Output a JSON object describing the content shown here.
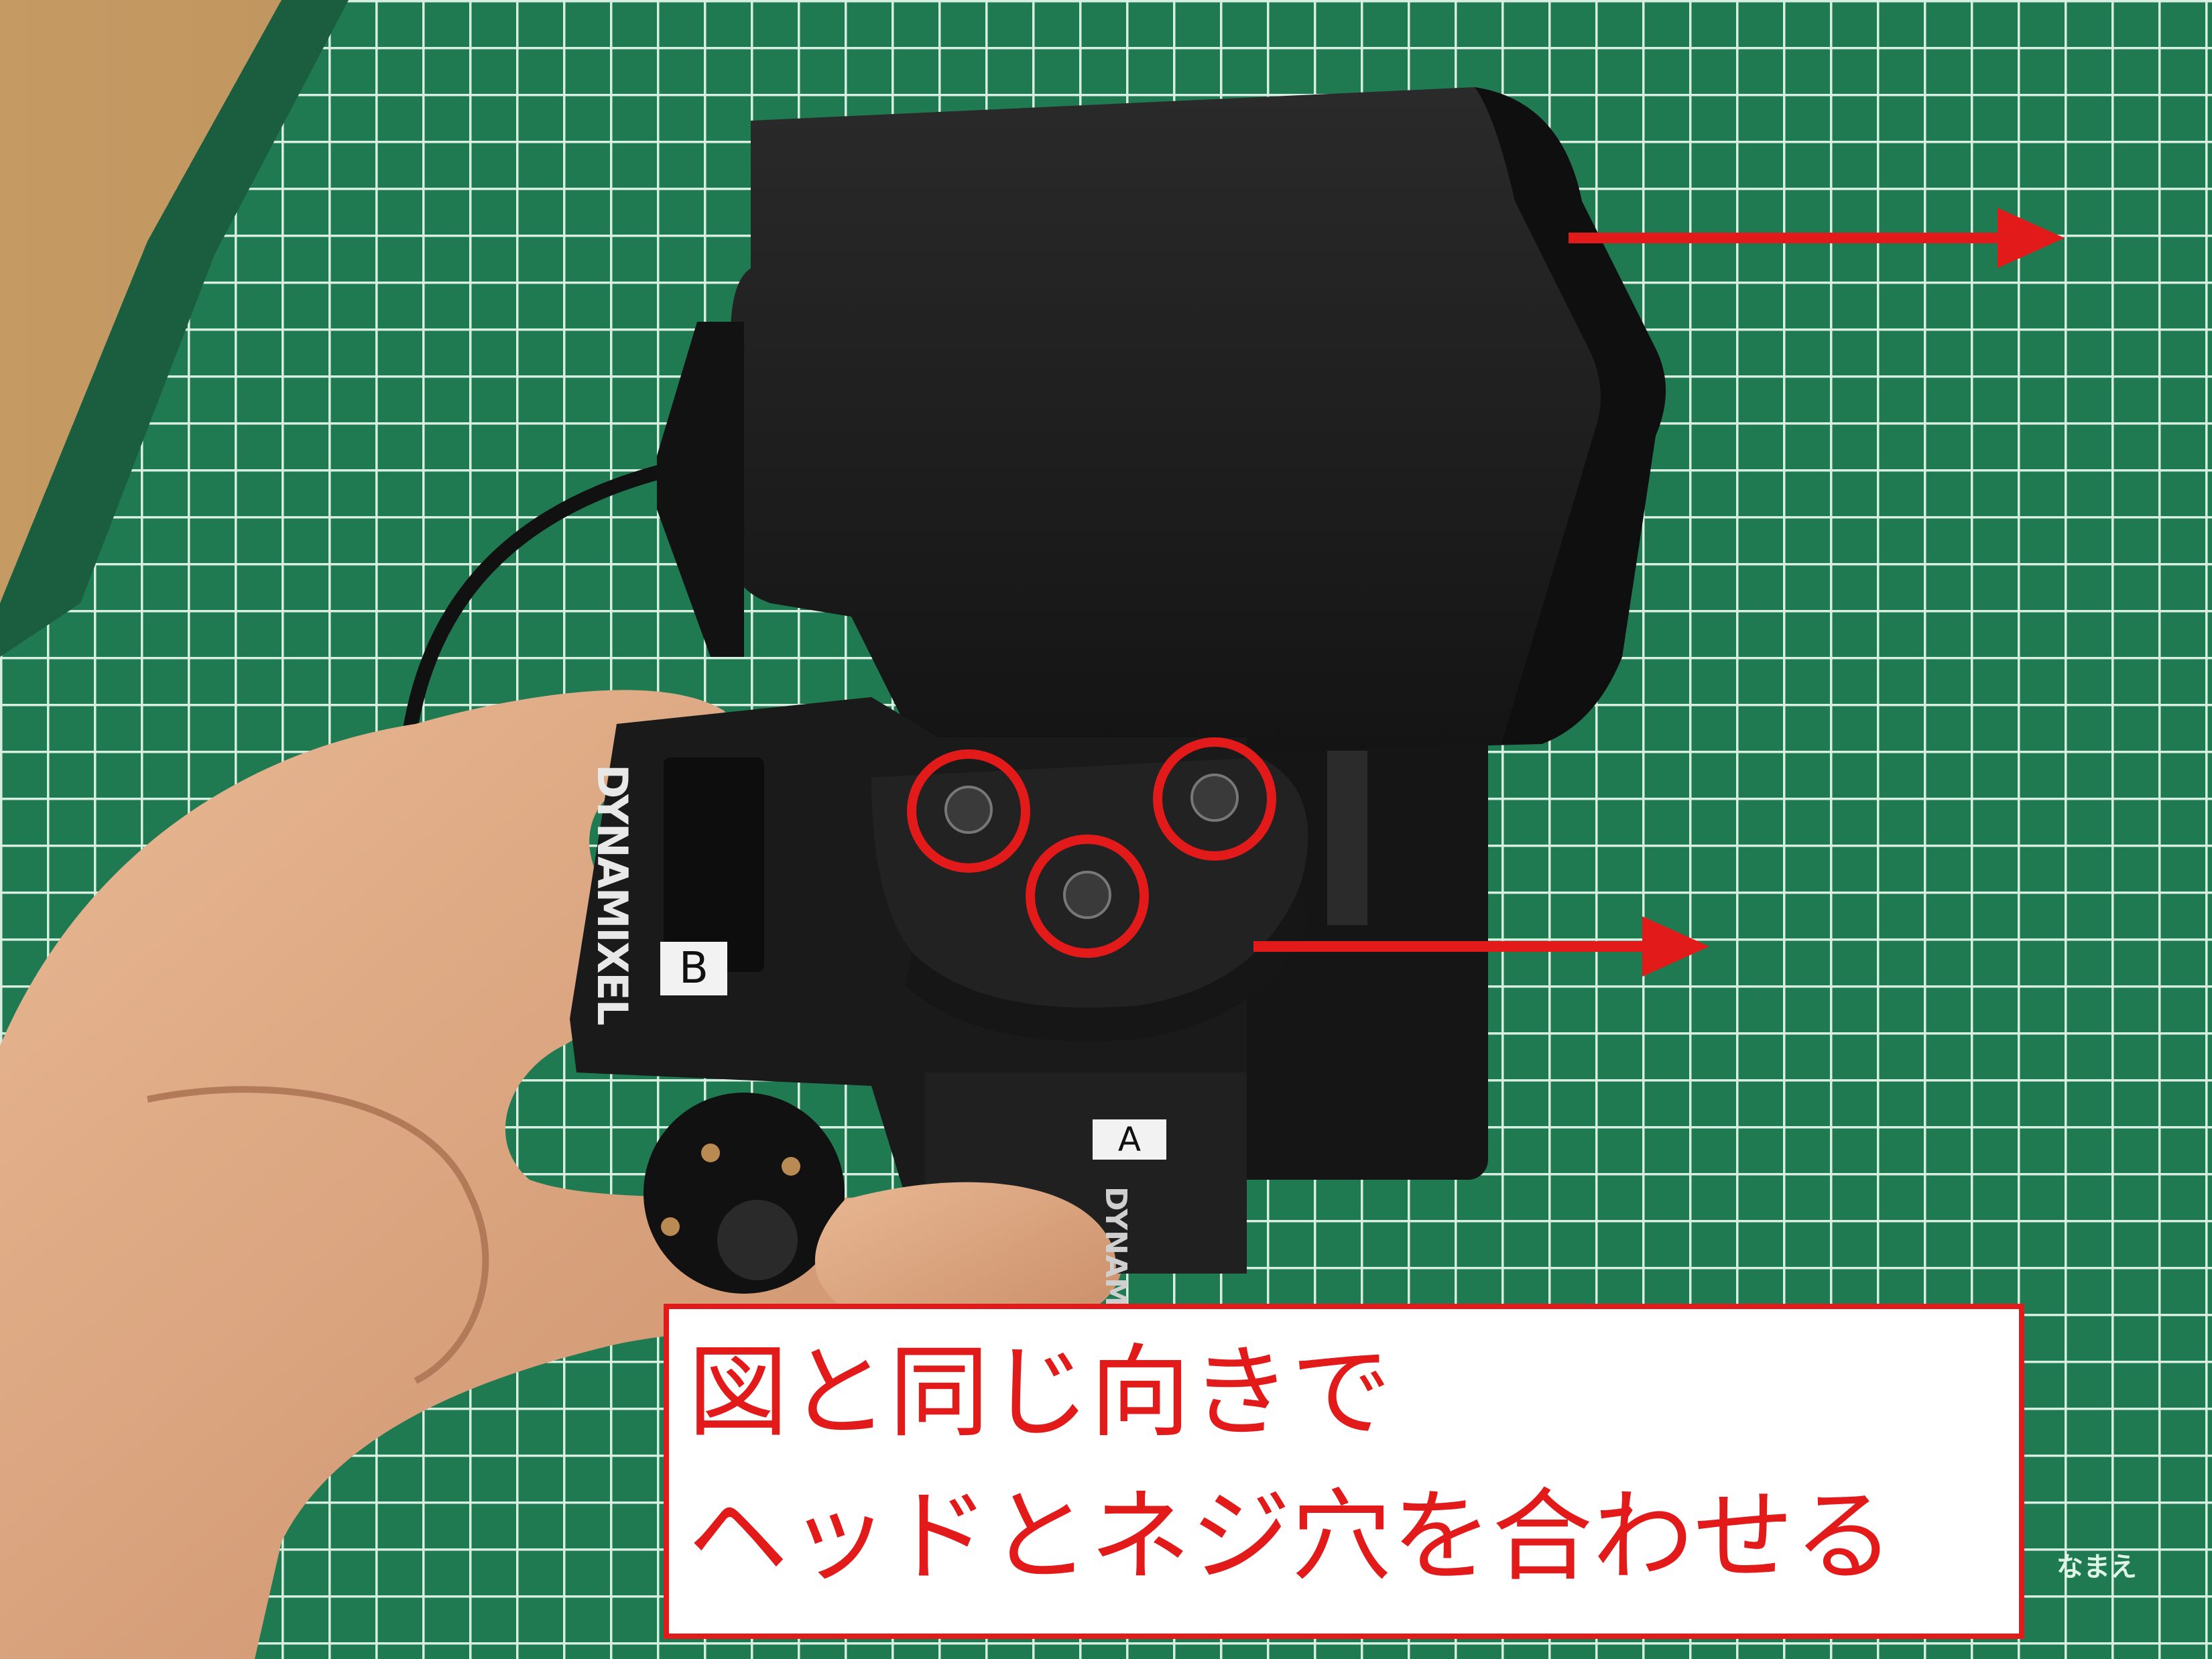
{
  "caption": {
    "line1": "図と同じ向きで",
    "line2": "ヘッドとネジ穴を合わせる"
  },
  "labels": {
    "servo_b": "B",
    "servo_a": "A",
    "brand": "DYNAMIXEL",
    "mat": "なまえ"
  },
  "colors": {
    "accent_red": "#e31a1a",
    "mat_green": "#1f7a52",
    "grid_line": "#d7efe0",
    "part_black": "#1b1b1b"
  }
}
